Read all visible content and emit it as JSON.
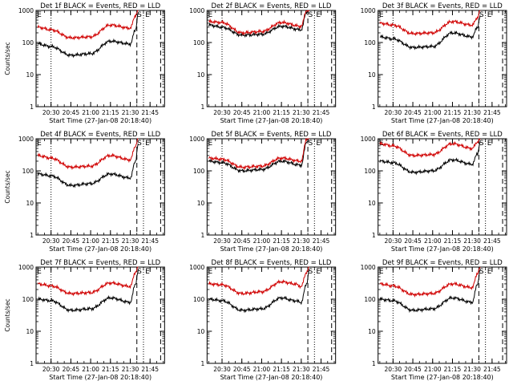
{
  "colors": {
    "events": "#000000",
    "lld": "#d00000",
    "background": "#ffffff",
    "axis": "#000000"
  },
  "common": {
    "ylabel": "Counts/sec",
    "xlabel": "Start Time (27-Jan-08 20:18:40)",
    "y_ticks": [
      "1",
      "10",
      "100",
      "1000"
    ],
    "x_ticks": [
      "20:30",
      "20:45",
      "21:00",
      "21:15",
      "21:30",
      "21:45"
    ],
    "markers": {
      "s": "S",
      "e": "E"
    }
  },
  "chart_data": [
    {
      "type": "line",
      "title": "Det 1f BLACK = Events, RED = LLD",
      "xlabel": "Start Time (27-Jan-08 20:18:40)",
      "ylabel": "Counts/sec",
      "yscale": "log",
      "ylim": [
        1,
        1000
      ],
      "x_ticks": [
        "20:30",
        "20:45",
        "21:00",
        "21:15",
        "21:30",
        "21:45"
      ],
      "markers": {
        "dotted": [
          "20:30",
          "21:40"
        ],
        "dashed": [
          "21:35",
          "21:53"
        ],
        "S": "21:37",
        "E": "21:43"
      },
      "series": [
        {
          "name": "Events",
          "color": "#000000",
          "x": [
            "20:20",
            "20:30",
            "20:45",
            "21:00",
            "21:15",
            "21:30",
            "21:34",
            "21:36"
          ],
          "y": [
            90,
            75,
            40,
            45,
            110,
            90,
            250,
            800
          ]
        },
        {
          "name": "LLD",
          "color": "#d00000",
          "x": [
            "20:20",
            "20:30",
            "20:45",
            "21:00",
            "21:15",
            "21:30",
            "21:34",
            "21:36"
          ],
          "y": [
            300,
            250,
            140,
            150,
            350,
            280,
            700,
            1000
          ]
        }
      ]
    },
    {
      "type": "line",
      "title": "Det 2f BLACK = Events, RED = LLD",
      "xlabel": "Start Time (27-Jan-08 20:18:40)",
      "ylabel": "Counts/sec",
      "yscale": "log",
      "ylim": [
        1,
        1000
      ],
      "x_ticks": [
        "20:30",
        "20:45",
        "21:00",
        "21:15",
        "21:30",
        "21:45"
      ],
      "markers": {
        "dotted": [
          "20:30",
          "21:40"
        ],
        "dashed": [
          "21:35",
          "21:53"
        ],
        "S": "21:37",
        "E": "21:43"
      },
      "series": [
        {
          "name": "Events",
          "color": "#000000",
          "x": [
            "20:20",
            "20:30",
            "20:45",
            "21:00",
            "21:15",
            "21:30",
            "21:34",
            "21:36"
          ],
          "y": [
            350,
            300,
            170,
            180,
            320,
            250,
            900,
            1000
          ]
        },
        {
          "name": "LLD",
          "color": "#d00000",
          "x": [
            "20:20",
            "20:30",
            "20:45",
            "21:00",
            "21:15",
            "21:30",
            "21:34",
            "21:36"
          ],
          "y": [
            450,
            420,
            200,
            220,
            420,
            320,
            1000,
            1000
          ]
        }
      ]
    },
    {
      "type": "line",
      "title": "Det 3f BLACK = Events, RED = LLD",
      "xlabel": "Start Time (27-Jan-08 20:18:40)",
      "ylabel": "Counts/sec",
      "yscale": "log",
      "ylim": [
        1,
        1000
      ],
      "x_ticks": [
        "20:30",
        "20:45",
        "21:00",
        "21:15",
        "21:30",
        "21:45"
      ],
      "markers": {
        "dotted": [
          "20:30",
          "21:40"
        ],
        "dashed": [
          "21:35",
          "21:53"
        ],
        "S": "21:37",
        "E": "21:43"
      },
      "series": [
        {
          "name": "Events",
          "color": "#000000",
          "x": [
            "20:20",
            "20:30",
            "20:45",
            "21:00",
            "21:15",
            "21:30",
            "21:34",
            "21:36"
          ],
          "y": [
            150,
            130,
            70,
            75,
            200,
            150,
            300,
            700
          ]
        },
        {
          "name": "LLD",
          "color": "#d00000",
          "x": [
            "20:20",
            "20:30",
            "20:45",
            "21:00",
            "21:15",
            "21:30",
            "21:34",
            "21:36"
          ],
          "y": [
            400,
            350,
            190,
            200,
            450,
            350,
            600,
            1000
          ]
        }
      ]
    },
    {
      "type": "line",
      "title": "Det 4f BLACK = Events, RED = LLD",
      "xlabel": "Start Time (27-Jan-08 20:18:40)",
      "ylabel": "Counts/sec",
      "yscale": "log",
      "ylim": [
        1,
        1000
      ],
      "x_ticks": [
        "20:30",
        "20:45",
        "21:00",
        "21:15",
        "21:30",
        "21:45"
      ],
      "markers": {
        "dotted": [
          "20:30",
          "21:40"
        ],
        "dashed": [
          "21:35",
          "21:53"
        ],
        "S": "21:37",
        "E": "21:43"
      },
      "series": [
        {
          "name": "Events",
          "color": "#000000",
          "x": [
            "20:20",
            "20:30",
            "20:45",
            "21:00",
            "21:15",
            "21:30",
            "21:34",
            "21:36"
          ],
          "y": [
            80,
            70,
            35,
            40,
            80,
            60,
            200,
            700
          ]
        },
        {
          "name": "LLD",
          "color": "#d00000",
          "x": [
            "20:20",
            "20:30",
            "20:45",
            "21:00",
            "21:15",
            "21:30",
            "21:34",
            "21:36"
          ],
          "y": [
            300,
            250,
            130,
            140,
            300,
            220,
            600,
            1000
          ]
        }
      ]
    },
    {
      "type": "line",
      "title": "Det 5f BLACK = Events, RED = LLD",
      "xlabel": "Start Time (27-Jan-08 20:18:40)",
      "ylabel": "Counts/sec",
      "yscale": "log",
      "ylim": [
        1,
        1000
      ],
      "x_ticks": [
        "20:30",
        "20:45",
        "21:00",
        "21:15",
        "21:30",
        "21:45"
      ],
      "markers": {
        "dotted": [
          "20:30",
          "21:40"
        ],
        "dashed": [
          "21:35",
          "21:53"
        ],
        "S": "21:37",
        "E": "21:43"
      },
      "series": [
        {
          "name": "Events",
          "color": "#000000",
          "x": [
            "20:20",
            "20:30",
            "20:45",
            "21:00",
            "21:15",
            "21:30",
            "21:34",
            "21:36"
          ],
          "y": [
            200,
            180,
            100,
            110,
            200,
            150,
            800,
            1000
          ]
        },
        {
          "name": "LLD",
          "color": "#d00000",
          "x": [
            "20:20",
            "20:30",
            "20:45",
            "21:00",
            "21:15",
            "21:30",
            "21:34",
            "21:36"
          ],
          "y": [
            250,
            230,
            130,
            140,
            250,
            200,
            1000,
            1000
          ]
        }
      ]
    },
    {
      "type": "line",
      "title": "Det 6f BLACK = Events, RED = LLD",
      "xlabel": "Start Time (27-Jan-08 20:18:40)",
      "ylabel": "Counts/sec",
      "yscale": "log",
      "ylim": [
        1,
        1000
      ],
      "x_ticks": [
        "20:30",
        "20:45",
        "21:00",
        "21:15",
        "21:30",
        "21:45"
      ],
      "markers": {
        "dotted": [
          "20:30",
          "21:40"
        ],
        "dashed": [
          "21:35",
          "21:53"
        ],
        "S": "21:37",
        "E": "21:43"
      },
      "series": [
        {
          "name": "Events",
          "color": "#000000",
          "x": [
            "20:20",
            "20:30",
            "20:45",
            "21:00",
            "21:15",
            "21:30",
            "21:34",
            "21:36"
          ],
          "y": [
            200,
            180,
            90,
            100,
            220,
            160,
            350,
            800
          ]
        },
        {
          "name": "LLD",
          "color": "#d00000",
          "x": [
            "20:20",
            "20:30",
            "20:45",
            "21:00",
            "21:15",
            "21:30",
            "21:34",
            "21:36"
          ],
          "y": [
            700,
            600,
            300,
            320,
            700,
            500,
            800,
            1000
          ]
        }
      ]
    },
    {
      "type": "line",
      "title": "Det 7f BLACK = Events, RED = LLD",
      "xlabel": "Start Time (27-Jan-08 20:18:40)",
      "ylabel": "Counts/sec",
      "yscale": "log",
      "ylim": [
        1,
        1000
      ],
      "x_ticks": [
        "20:30",
        "20:45",
        "21:00",
        "21:15",
        "21:30",
        "21:45"
      ],
      "markers": {
        "dotted": [
          "20:30",
          "21:40"
        ],
        "dashed": [
          "21:35",
          "21:53"
        ],
        "S": "21:37",
        "E": "21:43"
      },
      "series": [
        {
          "name": "Events",
          "color": "#000000",
          "x": [
            "20:20",
            "20:30",
            "20:45",
            "21:00",
            "21:15",
            "21:30",
            "21:34",
            "21:36"
          ],
          "y": [
            100,
            90,
            45,
            50,
            110,
            80,
            300,
            800
          ]
        },
        {
          "name": "LLD",
          "color": "#d00000",
          "x": [
            "20:20",
            "20:30",
            "20:45",
            "21:00",
            "21:15",
            "21:30",
            "21:34",
            "21:36"
          ],
          "y": [
            300,
            260,
            150,
            160,
            320,
            250,
            700,
            1000
          ]
        }
      ]
    },
    {
      "type": "line",
      "title": "Det 8f BLACK = Events, RED = LLD",
      "xlabel": "Start Time (27-Jan-08 20:18:40)",
      "ylabel": "Counts/sec",
      "yscale": "log",
      "ylim": [
        1,
        1000
      ],
      "x_ticks": [
        "20:30",
        "20:45",
        "21:00",
        "21:15",
        "21:30",
        "21:45"
      ],
      "markers": {
        "dotted": [
          "20:30",
          "21:40"
        ],
        "dashed": [
          "21:35",
          "21:53"
        ],
        "S": "21:37",
        "E": "21:43"
      },
      "series": [
        {
          "name": "Events",
          "color": "#000000",
          "x": [
            "20:20",
            "20:30",
            "20:45",
            "21:00",
            "21:15",
            "21:25",
            "21:30",
            "21:34",
            "21:36"
          ],
          "y": [
            100,
            90,
            45,
            50,
            110,
            90,
            80,
            300,
            800
          ]
        },
        {
          "name": "LLD",
          "color": "#d00000",
          "x": [
            "20:20",
            "20:30",
            "20:45",
            "21:00",
            "21:15",
            "21:25",
            "21:30",
            "21:34",
            "21:36"
          ],
          "y": [
            300,
            280,
            150,
            170,
            350,
            300,
            250,
            700,
            1000
          ]
        }
      ]
    },
    {
      "type": "line",
      "title": "Det 9f BLACK = Events, RED = LLD",
      "xlabel": "Start Time (27-Jan-08 20:18:40)",
      "ylabel": "Counts/sec",
      "yscale": "log",
      "ylim": [
        1,
        1000
      ],
      "x_ticks": [
        "20:30",
        "20:45",
        "21:00",
        "21:15",
        "21:30",
        "21:45"
      ],
      "markers": {
        "dotted": [
          "20:30",
          "21:40"
        ],
        "dashed": [
          "21:35",
          "21:53"
        ],
        "S": "21:37",
        "E": "21:43"
      },
      "series": [
        {
          "name": "Events",
          "color": "#000000",
          "x": [
            "20:20",
            "20:30",
            "20:45",
            "21:00",
            "21:15",
            "21:30",
            "21:34",
            "21:36"
          ],
          "y": [
            100,
            90,
            45,
            50,
            110,
            80,
            300,
            800
          ]
        },
        {
          "name": "LLD",
          "color": "#d00000",
          "x": [
            "20:20",
            "20:30",
            "20:45",
            "21:00",
            "21:15",
            "21:30",
            "21:34",
            "21:36"
          ],
          "y": [
            300,
            260,
            140,
            150,
            300,
            230,
            650,
            1000
          ]
        }
      ]
    }
  ]
}
